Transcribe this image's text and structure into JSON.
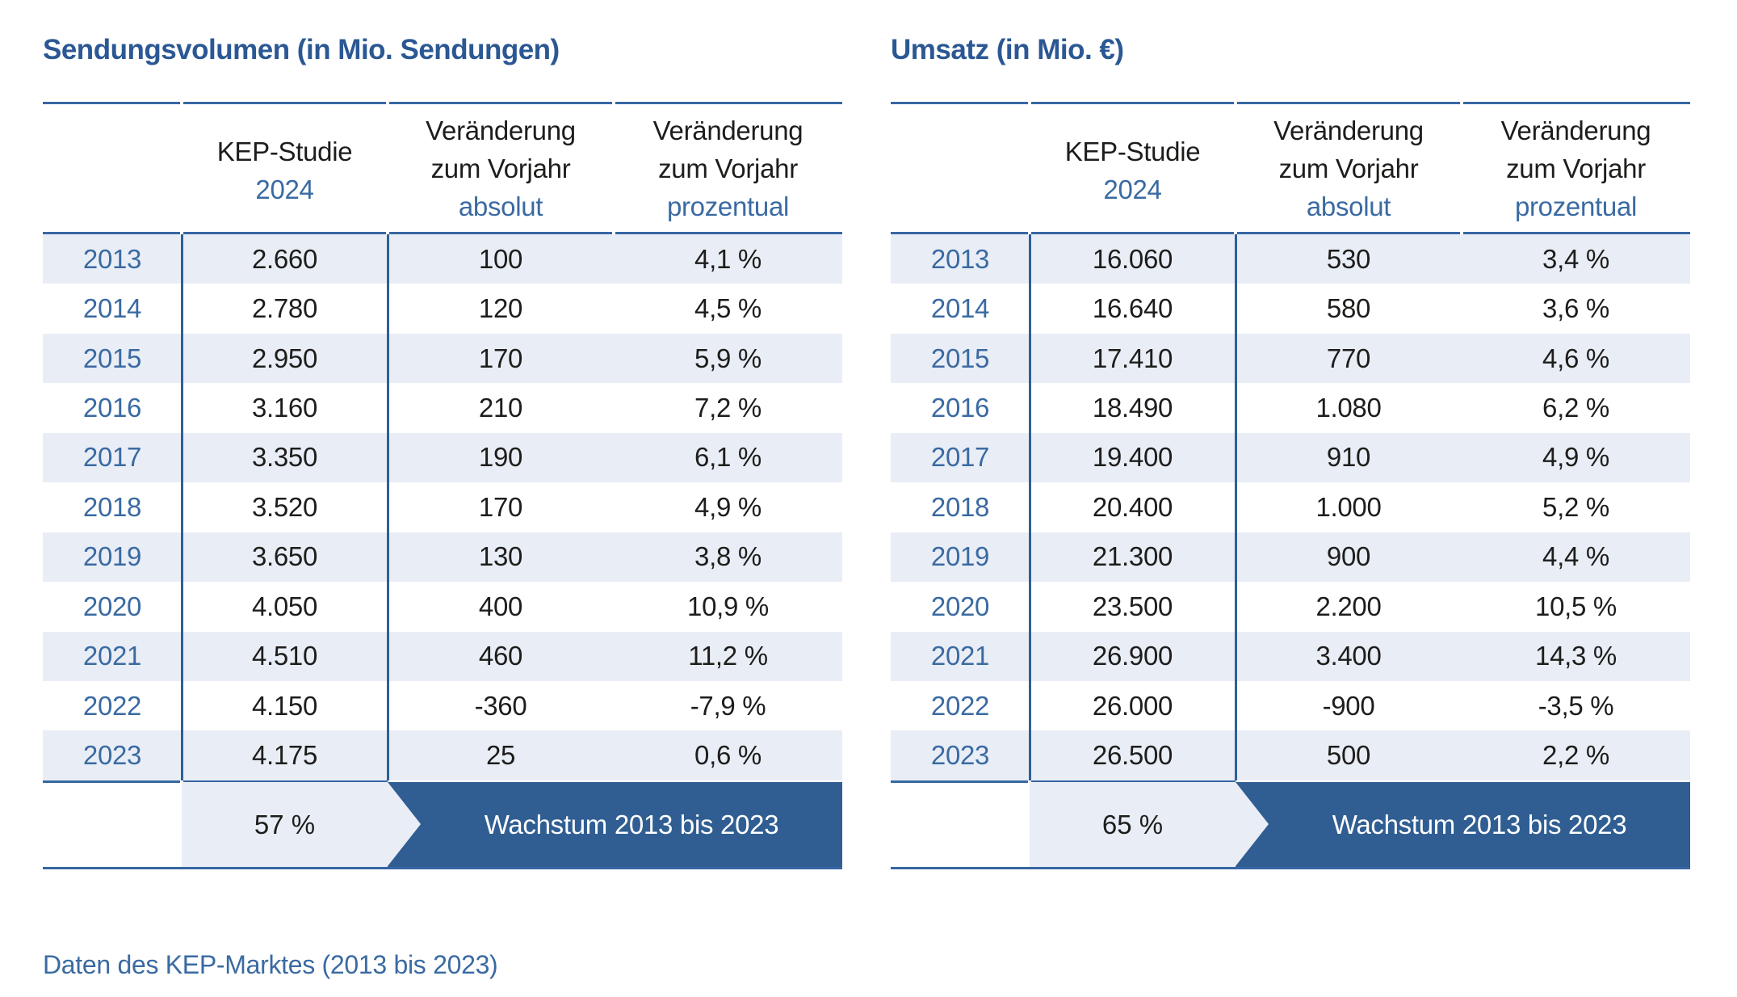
{
  "colors": {
    "title_blue": "#2b5894",
    "rule_blue": "#3767a4",
    "divider_blue": "#2e6096",
    "row_light": "#e9edf6",
    "banner_blue": "#305e92",
    "accent_text": "#3a6aa2",
    "text_dark": "#1d1d1b"
  },
  "caption": "Daten des KEP-Marktes (2013 bis 2023)",
  "tables": [
    {
      "title": "Sendungsvolumen (in Mio. Sendungen)",
      "header": {
        "study_line1": "KEP-Studie",
        "study_line2": "2024",
        "change_line1": "Veränderung",
        "change_line2": "zum Vorjahr",
        "absolute_label": "absolut",
        "percent_label": "prozentual"
      },
      "rows": [
        {
          "year": "2013",
          "value": "2.660",
          "abs": "100",
          "pct": "4,1 %"
        },
        {
          "year": "2014",
          "value": "2.780",
          "abs": "120",
          "pct": "4,5 %"
        },
        {
          "year": "2015",
          "value": "2.950",
          "abs": "170",
          "pct": "5,9 %"
        },
        {
          "year": "2016",
          "value": "3.160",
          "abs": "210",
          "pct": "7,2 %"
        },
        {
          "year": "2017",
          "value": "3.350",
          "abs": "190",
          "pct": "6,1 %"
        },
        {
          "year": "2018",
          "value": "3.520",
          "abs": "170",
          "pct": "4,9 %"
        },
        {
          "year": "2019",
          "value": "3.650",
          "abs": "130",
          "pct": "3,8 %"
        },
        {
          "year": "2020",
          "value": "4.050",
          "abs": "400",
          "pct": "10,9 %"
        },
        {
          "year": "2021",
          "value": "4.510",
          "abs": "460",
          "pct": "11,2 %"
        },
        {
          "year": "2022",
          "value": "4.150",
          "abs": "-360",
          "pct": "-7,9 %"
        },
        {
          "year": "2023",
          "value": "4.175",
          "abs": "25",
          "pct": "0,6 %"
        }
      ],
      "summary": {
        "growth": "57 %",
        "label": "Wachstum 2013 bis 2023"
      }
    },
    {
      "title": "Umsatz (in Mio. €)",
      "header": {
        "study_line1": "KEP-Studie",
        "study_line2": "2024",
        "change_line1": "Veränderung",
        "change_line2": "zum Vorjahr",
        "absolute_label": "absolut",
        "percent_label": "prozentual"
      },
      "rows": [
        {
          "year": "2013",
          "value": "16.060",
          "abs": "530",
          "pct": "3,4 %"
        },
        {
          "year": "2014",
          "value": "16.640",
          "abs": "580",
          "pct": "3,6 %"
        },
        {
          "year": "2015",
          "value": "17.410",
          "abs": "770",
          "pct": "4,6 %"
        },
        {
          "year": "2016",
          "value": "18.490",
          "abs": "1.080",
          "pct": "6,2 %"
        },
        {
          "year": "2017",
          "value": "19.400",
          "abs": "910",
          "pct": "4,9 %"
        },
        {
          "year": "2018",
          "value": "20.400",
          "abs": "1.000",
          "pct": "5,2 %"
        },
        {
          "year": "2019",
          "value": "21.300",
          "abs": "900",
          "pct": "4,4 %"
        },
        {
          "year": "2020",
          "value": "23.500",
          "abs": "2.200",
          "pct": "10,5 %"
        },
        {
          "year": "2021",
          "value": "26.900",
          "abs": "3.400",
          "pct": "14,3 %"
        },
        {
          "year": "2022",
          "value": "26.000",
          "abs": "-900",
          "pct": "-3,5 %"
        },
        {
          "year": "2023",
          "value": "26.500",
          "abs": "500",
          "pct": "2,2 %"
        }
      ],
      "summary": {
        "growth": "65 %",
        "label": "Wachstum 2013 bis 2023"
      }
    }
  ],
  "chart_data": [
    {
      "type": "table",
      "title": "Sendungsvolumen (in Mio. Sendungen)",
      "columns": [
        "Jahr",
        "KEP-Studie 2024",
        "Veränderung zum Vorjahr absolut",
        "Veränderung zum Vorjahr prozentual"
      ],
      "rows": [
        [
          2013,
          2660,
          100,
          4.1
        ],
        [
          2014,
          2780,
          120,
          4.5
        ],
        [
          2015,
          2950,
          170,
          5.9
        ],
        [
          2016,
          3160,
          210,
          7.2
        ],
        [
          2017,
          3350,
          190,
          6.1
        ],
        [
          2018,
          3520,
          170,
          4.9
        ],
        [
          2019,
          3650,
          130,
          3.8
        ],
        [
          2020,
          4050,
          400,
          10.9
        ],
        [
          2021,
          4510,
          460,
          11.2
        ],
        [
          2022,
          4150,
          -360,
          -7.9
        ],
        [
          2023,
          4175,
          25,
          0.6
        ]
      ],
      "summary": {
        "growth_percent_2013_2023": 57
      }
    },
    {
      "type": "table",
      "title": "Umsatz (in Mio. €)",
      "columns": [
        "Jahr",
        "KEP-Studie 2024",
        "Veränderung zum Vorjahr absolut",
        "Veränderung zum Vorjahr prozentual"
      ],
      "rows": [
        [
          2013,
          16060,
          530,
          3.4
        ],
        [
          2014,
          16640,
          580,
          3.6
        ],
        [
          2015,
          17410,
          770,
          4.6
        ],
        [
          2016,
          18490,
          1080,
          6.2
        ],
        [
          2017,
          19400,
          910,
          4.9
        ],
        [
          2018,
          20400,
          1000,
          5.2
        ],
        [
          2019,
          21300,
          900,
          4.4
        ],
        [
          2020,
          23500,
          2200,
          10.5
        ],
        [
          2021,
          26900,
          3400,
          14.3
        ],
        [
          2022,
          26000,
          -900,
          -3.5
        ],
        [
          2023,
          26500,
          500,
          2.2
        ]
      ],
      "summary": {
        "growth_percent_2013_2023": 65
      }
    }
  ]
}
